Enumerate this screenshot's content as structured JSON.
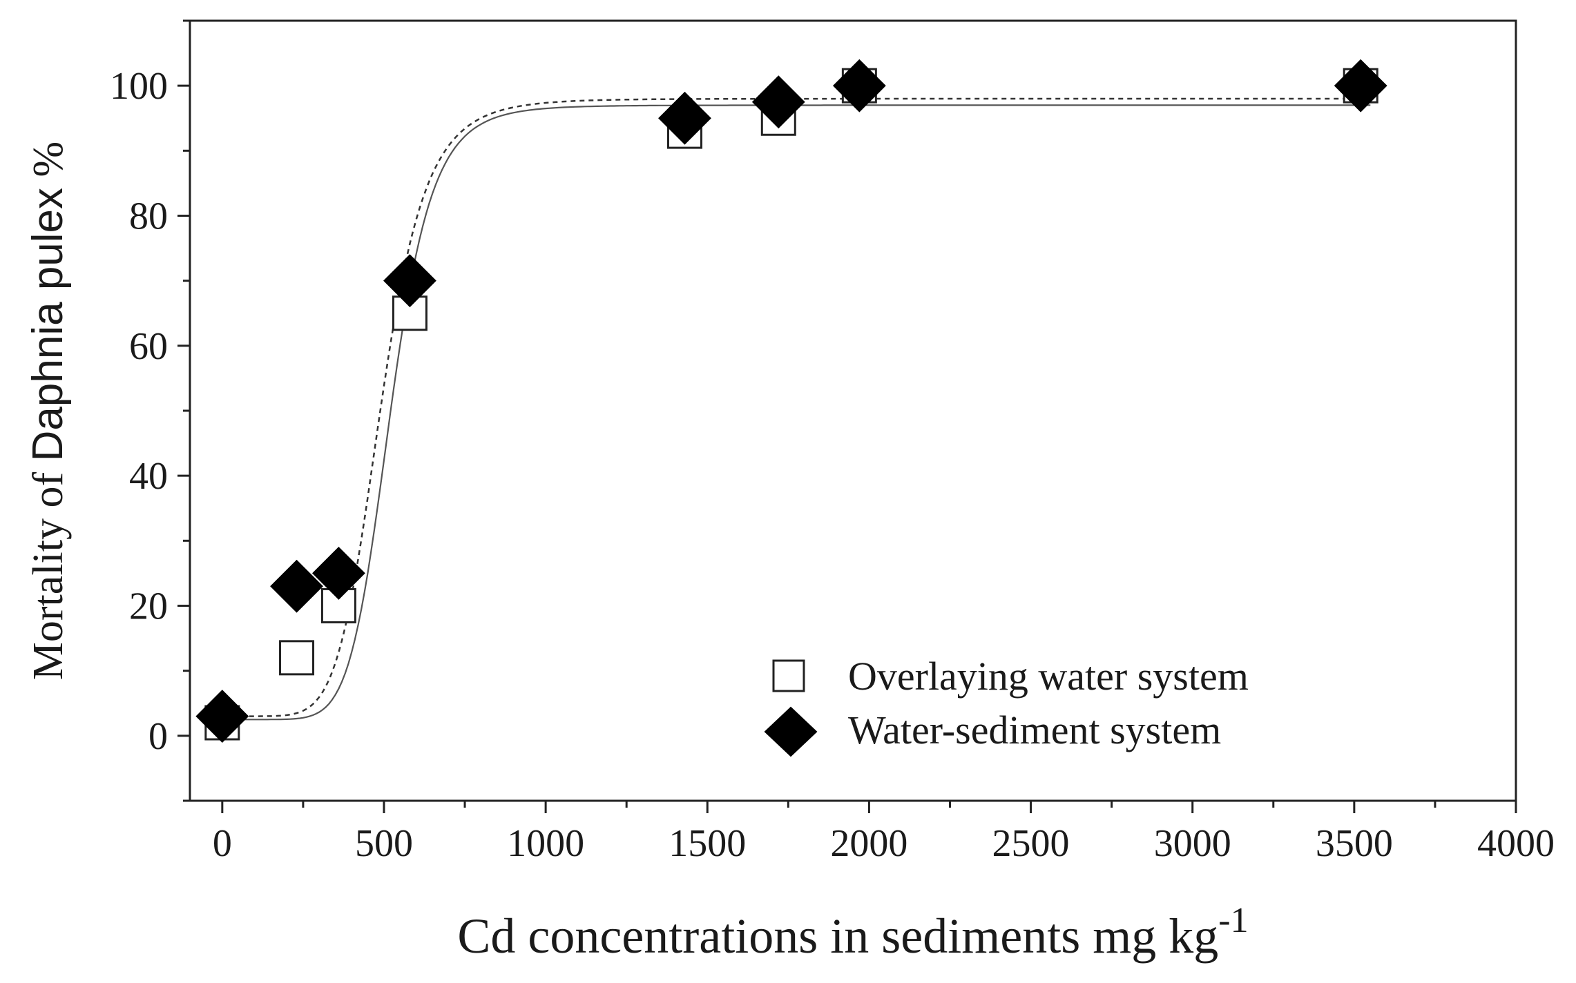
{
  "chart_data": {
    "type": "scatter",
    "x_axis": {
      "label": "Cd concentrations in sediments mg kg",
      "label_superscript": "-1",
      "range": [
        -100,
        4000
      ],
      "ticks": [
        0,
        500,
        1000,
        1500,
        2000,
        2500,
        3000,
        3500,
        4000
      ],
      "tick_labels": [
        "0",
        "500",
        "1000",
        "1500",
        "2000",
        "2500",
        "3000",
        "3500",
        "4000"
      ]
    },
    "y_axis": {
      "label_prefix": "Mortality of ",
      "label_species": "Daphnia pulex",
      "label_suffix": " %",
      "range": [
        -10,
        110
      ],
      "ticks": [
        0,
        20,
        40,
        60,
        80,
        100
      ],
      "tick_labels": [
        "0",
        "20",
        "40",
        "60",
        "80",
        "100"
      ]
    },
    "series": [
      {
        "name": "Overlaying water system",
        "marker": "open-square",
        "fit_line": "dashed",
        "points": [
          {
            "x": 0,
            "y": 2
          },
          {
            "x": 230,
            "y": 12
          },
          {
            "x": 360,
            "y": 20
          },
          {
            "x": 580,
            "y": 65
          },
          {
            "x": 1430,
            "y": 93
          },
          {
            "x": 1720,
            "y": 95
          },
          {
            "x": 1970,
            "y": 100
          },
          {
            "x": 3520,
            "y": 100
          }
        ],
        "fit": {
          "bottom": 3,
          "top": 98,
          "x50": 490,
          "slope": 7
        }
      },
      {
        "name": "Water-sediment system",
        "marker": "filled-diamond",
        "fit_line": "solid",
        "points": [
          {
            "x": 0,
            "y": 3
          },
          {
            "x": 230,
            "y": 23
          },
          {
            "x": 360,
            "y": 25
          },
          {
            "x": 580,
            "y": 70
          },
          {
            "x": 1430,
            "y": 95
          },
          {
            "x": 1720,
            "y": 97.5
          },
          {
            "x": 1970,
            "y": 100
          },
          {
            "x": 3520,
            "y": 100
          }
        ],
        "fit": {
          "bottom": 2.5,
          "top": 97,
          "x50": 520,
          "slope": 8
        }
      }
    ],
    "legend": {
      "position": "bottom-right",
      "entries": [
        "Overlaying water system",
        "Water-sediment system"
      ]
    }
  }
}
